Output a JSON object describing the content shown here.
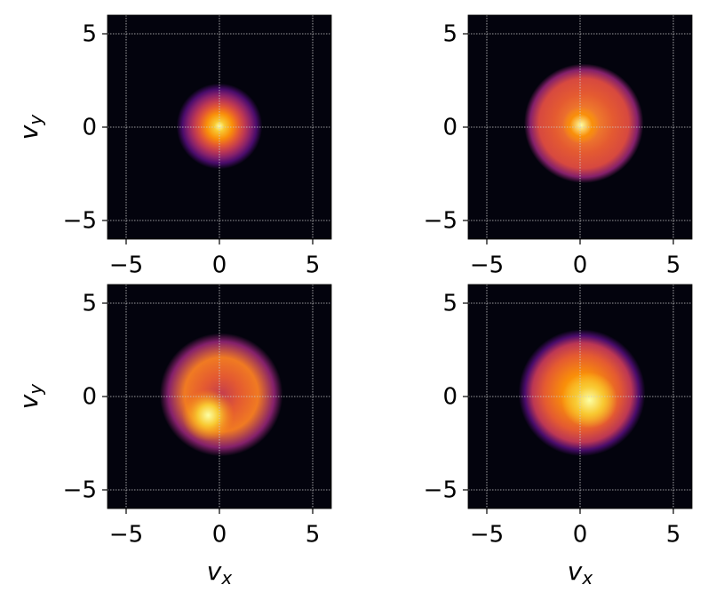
{
  "chart_data": [
    {
      "type": "heatmap",
      "xlim": [
        -6,
        6
      ],
      "ylim": [
        -6,
        6
      ],
      "xticks": [
        {
          "value": -5,
          "label": "−5"
        },
        0,
        5
      ],
      "yticks": [
        {
          "value": -5,
          "label": "−5"
        },
        0,
        5
      ],
      "ylabel": {
        "text": "v",
        "subscript": "y"
      },
      "grid": true,
      "background": "#03030d"
    },
    {
      "type": "heatmap",
      "xlim": [
        -6,
        6
      ],
      "ylim": [
        -6,
        6
      ],
      "xticks": [
        {
          "value": -5,
          "label": "−5"
        },
        0,
        5
      ],
      "yticks": [
        {
          "value": -5,
          "label": "−5"
        },
        0,
        5
      ],
      "grid": true,
      "background": "#03030d"
    },
    {
      "type": "heatmap",
      "xlim": [
        -6,
        6
      ],
      "ylim": [
        -6,
        6
      ],
      "xticks": [
        {
          "value": -5,
          "label": "−5"
        },
        0,
        5
      ],
      "yticks": [
        {
          "value": -5,
          "label": "−5"
        },
        0,
        5
      ],
      "xlabel": {
        "text": "v",
        "subscript": "x"
      },
      "ylabel": {
        "text": "v",
        "subscript": "y"
      },
      "grid": true,
      "background": "#03030d"
    },
    {
      "type": "heatmap",
      "xlim": [
        -6,
        6
      ],
      "ylim": [
        -6,
        6
      ],
      "xticks": [
        {
          "value": -5,
          "label": "−5"
        },
        0,
        5
      ],
      "yticks": [
        {
          "value": -5,
          "label": "−5"
        },
        0,
        5
      ],
      "xlabel": {
        "text": "v",
        "subscript": "x"
      },
      "grid": true,
      "background": "#03030d"
    }
  ]
}
